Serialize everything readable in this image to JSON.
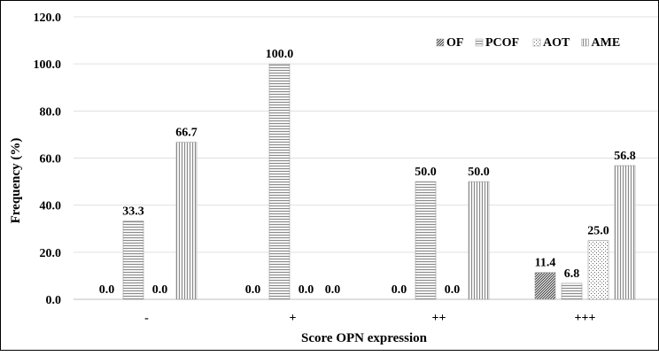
{
  "chart_data": {
    "type": "bar",
    "ylabel": "Frequency (%)",
    "xlabel": "Score OPN expression",
    "ylim": [
      0,
      120
    ],
    "yticks": [
      "0.0",
      "20.0",
      "40.0",
      "60.0",
      "80.0",
      "100.0",
      "120.0"
    ],
    "grid": true,
    "legend_position": "top-right",
    "categories": [
      "-",
      "+",
      "++",
      "+++"
    ],
    "series": [
      {
        "name": "OF",
        "pattern": "diagonal",
        "values": [
          0.0,
          0.0,
          0.0,
          11.4
        ],
        "labels": [
          "0.0",
          "0.0",
          "0.0",
          "11.4"
        ]
      },
      {
        "name": "PCOF",
        "pattern": "horizontal",
        "values": [
          33.3,
          100.0,
          50.0,
          6.8
        ],
        "labels": [
          "33.3",
          "100.0",
          "50.0",
          "6.8"
        ]
      },
      {
        "name": "AOT",
        "pattern": "dots",
        "values": [
          0.0,
          0.0,
          0.0,
          25.0
        ],
        "labels": [
          "0.0",
          "0.0",
          "0.0",
          "25.0"
        ]
      },
      {
        "name": "AME",
        "pattern": "vertical",
        "values": [
          66.7,
          0.0,
          50.0,
          56.8
        ],
        "labels": [
          "66.7",
          "0.0",
          "50.0",
          "56.8"
        ]
      }
    ]
  }
}
